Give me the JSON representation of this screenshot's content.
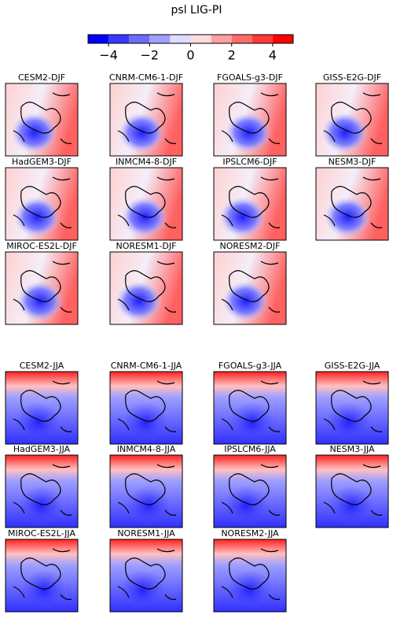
{
  "title": "psl LIG-PI",
  "colorbar": {
    "type": "colorbar",
    "lim": [
      -5,
      5
    ],
    "bins": [
      -5,
      -4,
      -3,
      -2,
      -1,
      0,
      1,
      2,
      3,
      4,
      5
    ],
    "colors": [
      "#0000ff",
      "#3838ff",
      "#6c6cff",
      "#a0a0ff",
      "#dcdcff",
      "#ffdcdc",
      "#ffa0a0",
      "#ff6c6c",
      "#ff3838",
      "#ff0000"
    ],
    "ticks": [
      {
        "value": -4,
        "label": "−4"
      },
      {
        "value": -2,
        "label": "−2"
      },
      0,
      2,
      4
    ]
  },
  "djf_panels": [
    "CESM2-DJF",
    "CNRM-CM6-1-DJF",
    "FGOALS-g3-DJF",
    "GISS-E2G-DJF",
    "HadGEM3-DJF",
    "INMCM4-8-DJF",
    "IPSLCM6-DJF",
    "NESM3-DJF",
    "MIROC-ES2L-DJF",
    "NORESM1-DJF",
    "NORESM2-DJF"
  ],
  "jja_panels": [
    "CESM2-JJA",
    "CNRM-CM6-1-JJA",
    "FGOALS-g3-JJA",
    "GISS-E2G-JJA",
    "HadGEM3-JJA",
    "INMCM4-8-JJA",
    "IPSLCM6-JJA",
    "NESM3-JJA",
    "MIROC-ES2L-JJA",
    "NORESM1-JJA",
    "NORESM2-JJA"
  ]
}
